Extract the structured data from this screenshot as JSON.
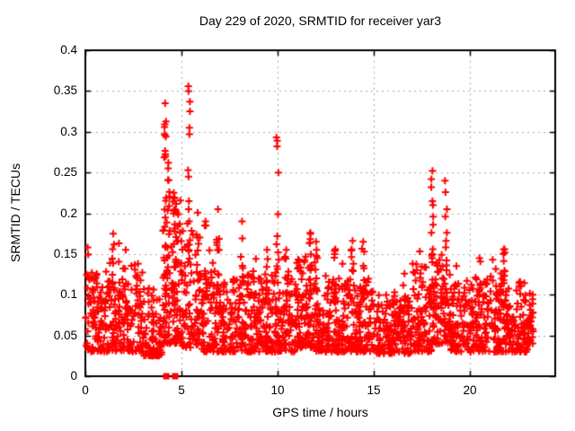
{
  "chart_data": {
    "type": "scatter",
    "title": "Day 229 of 2020, SRMTID for receiver yar3",
    "xlabel": "GPS time / hours",
    "ylabel": "SRMTID / TECUs",
    "xlim": [
      0,
      24.44
    ],
    "ylim": [
      0,
      0.4
    ],
    "xticks": {
      "values": [
        0,
        5,
        10,
        15,
        20
      ],
      "labels": [
        "0",
        "5",
        "10",
        "15",
        "20"
      ]
    },
    "yticks": {
      "values": [
        0,
        0.05,
        0.1,
        0.15,
        0.2,
        0.25,
        0.3,
        0.35,
        0.4
      ],
      "labels": [
        "0",
        "0.05",
        "0.1",
        "0.15",
        "0.2",
        "0.25",
        "0.3",
        "0.35",
        "0.4"
      ]
    },
    "grid": {
      "show": true,
      "style": "dashed",
      "color": "#a8a8a8"
    },
    "axis_color": "#000000",
    "marker": {
      "shape": "plus",
      "color": "#ff0000",
      "size": 7
    },
    "series": [
      {
        "name": "SRMTID",
        "x_data_range": [
          0,
          23.3
        ],
        "generator": {
          "seed": 229,
          "bins": [
            [
              0,
              1,
              85,
              0.03,
              0.13
            ],
            [
              1,
              2,
              85,
              0.03,
              0.13
            ],
            [
              2,
              3,
              85,
              0.03,
              0.14
            ],
            [
              3,
              4,
              80,
              0.025,
              0.11
            ],
            [
              4,
              5,
              110,
              0.04,
              0.22
            ],
            [
              5,
              6,
              95,
              0.035,
              0.18
            ],
            [
              6,
              7,
              85,
              0.03,
              0.13
            ],
            [
              7,
              8,
              80,
              0.03,
              0.12
            ],
            [
              8,
              9,
              85,
              0.03,
              0.13
            ],
            [
              9,
              10,
              90,
              0.03,
              0.13
            ],
            [
              10,
              11,
              90,
              0.03,
              0.13
            ],
            [
              11,
              12,
              95,
              0.035,
              0.15
            ],
            [
              12,
              13,
              90,
              0.03,
              0.12
            ],
            [
              13,
              14,
              85,
              0.03,
              0.12
            ],
            [
              14,
              15,
              85,
              0.03,
              0.12
            ],
            [
              15,
              16,
              80,
              0.028,
              0.1
            ],
            [
              16,
              17,
              80,
              0.028,
              0.105
            ],
            [
              17,
              18,
              95,
              0.03,
              0.14
            ],
            [
              18,
              19,
              100,
              0.04,
              0.15
            ],
            [
              19,
              20,
              85,
              0.03,
              0.12
            ],
            [
              20,
              21,
              85,
              0.03,
              0.12
            ],
            [
              21,
              22,
              90,
              0.03,
              0.13
            ],
            [
              22,
              23,
              90,
              0.03,
              0.12
            ],
            [
              23,
              23.3,
              30,
              0.04,
              0.1
            ]
          ],
          "spikes": [
            {
              "x": 0.12,
              "top": 0.158,
              "n": 4
            },
            {
              "x": 1.45,
              "top": 0.175,
              "n": 7
            },
            {
              "x": 1.75,
              "top": 0.163,
              "n": 5
            },
            {
              "x": 2.1,
              "top": 0.155,
              "n": 4
            },
            {
              "x": 4.15,
              "top": 0.335,
              "n": 20
            },
            {
              "x": 4.32,
              "top": 0.262,
              "n": 12
            },
            {
              "x": 4.6,
              "top": 0.225,
              "n": 9
            },
            {
              "x": 5.4,
              "ys": [
                0.356,
                0.35,
                0.337,
                0.325,
                0.305,
                0.297,
                0.253,
                0.245,
                0.215,
                0.205,
                0.19,
                0.155,
                0.14
              ]
            },
            {
              "x": 6.25,
              "top": 0.19,
              "n": 6
            },
            {
              "x": 6.9,
              "top": 0.205,
              "n": 7
            },
            {
              "x": 8.15,
              "top": 0.19,
              "n": 7
            },
            {
              "x": 9.45,
              "top": 0.155,
              "n": 6
            },
            {
              "x": 10.0,
              "ys": [
                0.293,
                0.289,
                0.282,
                0.25,
                0.199,
                0.172,
                0.162,
                0.152,
                0.143,
                0.135
              ]
            },
            {
              "x": 10.45,
              "top": 0.155,
              "n": 6
            },
            {
              "x": 11.7,
              "top": 0.176,
              "n": 13
            },
            {
              "x": 12.0,
              "top": 0.165,
              "n": 7
            },
            {
              "x": 13.0,
              "top": 0.156,
              "n": 7
            },
            {
              "x": 13.9,
              "top": 0.166,
              "n": 7
            },
            {
              "x": 14.45,
              "top": 0.165,
              "n": 9
            },
            {
              "x": 16.6,
              "top": 0.126,
              "n": 5
            },
            {
              "x": 18.05,
              "ys": [
                0.252,
                0.242,
                0.232,
                0.215,
                0.21,
                0.196,
                0.186,
                0.176,
                0.156,
                0.15,
                0.145,
                0.14
              ]
            },
            {
              "x": 18.75,
              "ys": [
                0.24,
                0.226,
                0.205,
                0.196,
                0.176,
                0.166,
                0.136,
                0.13
              ]
            },
            {
              "x": 20.5,
              "top": 0.145,
              "n": 2
            },
            {
              "x": 21.8,
              "top": 0.156,
              "n": 7
            }
          ],
          "zero_squares": [
            4.21,
            4.67
          ]
        }
      }
    ]
  }
}
